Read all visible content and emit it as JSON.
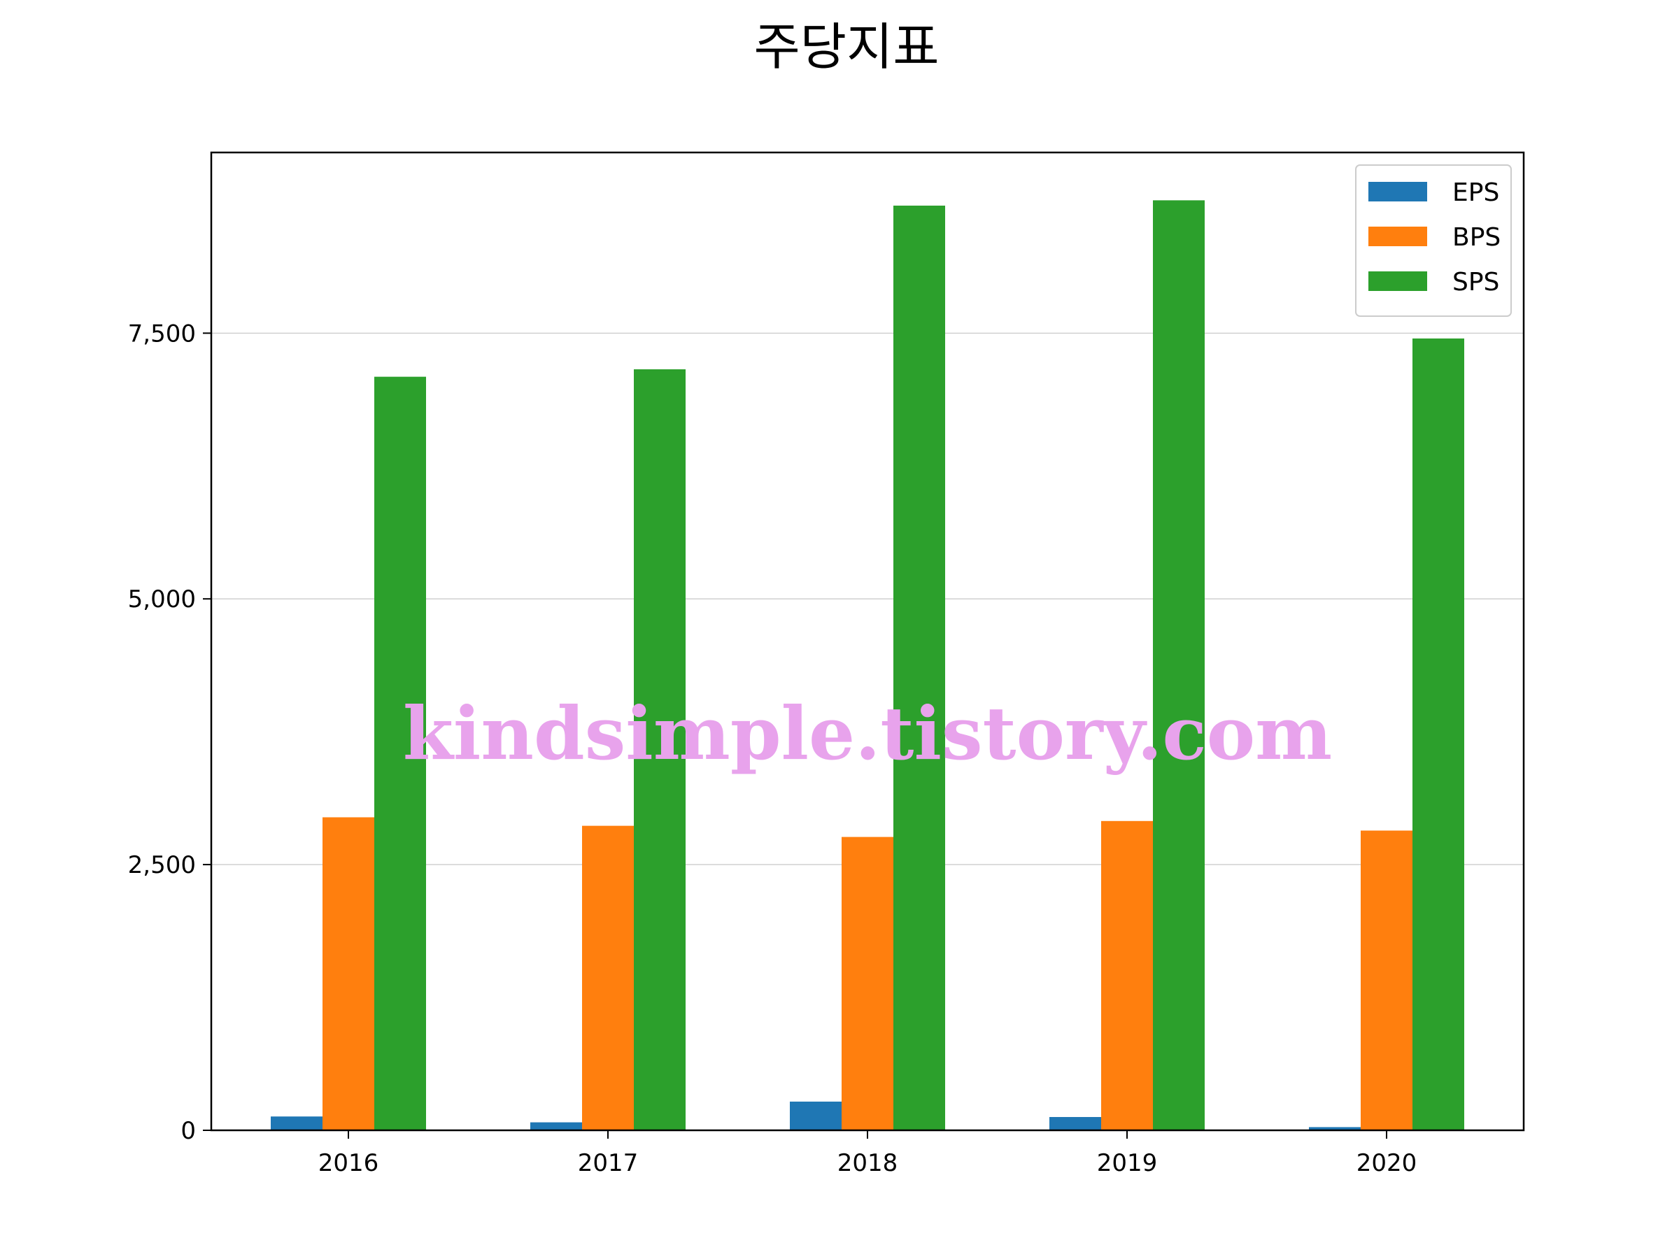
{
  "chart_data": {
    "type": "bar",
    "title": "주당지표",
    "xlabel": "",
    "ylabel": "",
    "categories": [
      "2016",
      "2017",
      "2018",
      "2019",
      "2020"
    ],
    "series": [
      {
        "name": "EPS",
        "color": "#1f77b4",
        "values": [
          130,
          75,
          270,
          125,
          30
        ]
      },
      {
        "name": "BPS",
        "color": "#ff7f0e",
        "values": [
          2945,
          2865,
          2760,
          2910,
          2820
        ]
      },
      {
        "name": "SPS",
        "color": "#2ca02c",
        "values": [
          7090,
          7160,
          8700,
          8750,
          7450
        ]
      }
    ],
    "ylim": [
      0,
      9200
    ],
    "yticks": [
      0,
      2500,
      5000,
      7500
    ],
    "ytick_labels": [
      "0",
      "2,500",
      "5,000",
      "7,500"
    ],
    "grid": "y",
    "legend_position": "top-right"
  },
  "watermark": "kindsimple.tistory.com"
}
